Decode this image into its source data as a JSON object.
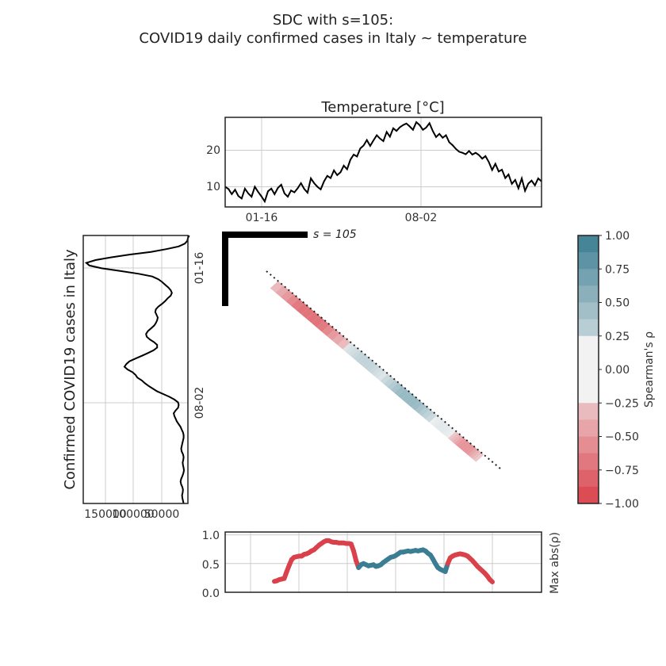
{
  "title_line1": "SDC with s=105:",
  "title_line2": "COVID19 daily confirmed cases in Italy ~ temperature",
  "scale_label": "s = 105",
  "colors": {
    "negative": "#d9414b",
    "positive": "#3b7d92",
    "diagonal": "#222222",
    "line": "#000000"
  },
  "chart_data": [
    {
      "type": "line",
      "title": "Temperature [°C]",
      "xticks": [
        "01-16",
        "08-02"
      ],
      "yticks": [
        10,
        20
      ],
      "ylim": [
        4.5,
        29
      ],
      "grid": true,
      "series": [
        {
          "values": [
            10,
            9.4,
            8,
            9.2,
            7.5,
            6.8,
            9.5,
            8.2,
            7.3,
            10,
            8.6,
            7.4,
            6,
            8.8,
            9.5,
            8,
            9.7,
            10.6,
            8.2,
            7.3,
            9,
            8.5,
            9.6,
            11,
            9.4,
            8.4,
            12.3,
            11,
            10,
            9.3,
            11.5,
            13,
            12.4,
            14.5,
            13.2,
            14,
            15.8,
            14.8,
            17.4,
            18.8,
            18.3,
            20.5,
            21.3,
            22.8,
            21.2,
            22.7,
            24.1,
            23.2,
            22.5,
            25,
            23.7,
            26,
            25.3,
            26.3,
            26.9,
            27.3,
            26.5,
            25.6,
            27.7,
            26.9,
            25.6,
            26.2,
            27.4,
            25.3,
            23.6,
            24.5,
            23.4,
            24.1,
            22.2,
            21.4,
            20.4,
            19.6,
            19.3,
            18.9,
            19.8,
            18.8,
            19.3,
            18.7,
            17.7,
            18.4,
            16.8,
            14.6,
            16.3,
            14.2,
            14.7,
            12.4,
            13.4,
            10.8,
            11.9,
            9.6,
            12.3,
            8.9,
            10.9,
            11.7,
            10.4,
            12.3,
            11.5
          ]
        }
      ]
    },
    {
      "type": "line",
      "ylabel": "Confirmed COVID19 cases in Italy",
      "yticks": [
        "01-16",
        "08-02"
      ],
      "xticks": [
        "150000",
        "100000",
        "50000"
      ],
      "xlim": [
        180000,
        10000
      ],
      "orientation": "vertical",
      "grid": true,
      "series": [
        {
          "values": [
            8000,
            10000,
            11000,
            15000,
            25000,
            45000,
            70000,
            105000,
            135000,
            160000,
            175000,
            170000,
            150000,
            120000,
            90000,
            68000,
            58000,
            52000,
            47000,
            42000,
            38000,
            36000,
            38000,
            43000,
            47000,
            52000,
            58000,
            62000,
            63000,
            61000,
            59000,
            60000,
            62000,
            65000,
            70000,
            75000,
            78000,
            77000,
            72000,
            65000,
            60000,
            60000,
            66000,
            75000,
            85000,
            95000,
            105000,
            110000,
            113000,
            108000,
            100000,
            95000,
            92000,
            85000,
            80000,
            74000,
            67000,
            60000,
            50000,
            40000,
            32000,
            26000,
            25000,
            26000,
            30000,
            33000,
            32000,
            30000,
            28000,
            25000,
            22000,
            20000,
            18000,
            17000,
            17000,
            18000,
            19000,
            20000,
            21000,
            20000,
            18000,
            17000,
            17500,
            18500,
            18000,
            17000,
            16500,
            17500,
            19000,
            21000,
            22000,
            21000,
            19000,
            18000,
            18500,
            19500,
            19000,
            18000,
            17000
          ]
        }
      ]
    },
    {
      "type": "heatmap",
      "name": "SDC diagonal map",
      "segments": [
        {
          "from": 0.05,
          "to": 0.36,
          "rho": -0.8
        },
        {
          "from": 0.36,
          "to": 0.52,
          "rho": 0.3
        },
        {
          "from": 0.52,
          "to": 0.73,
          "rho": 0.55
        },
        {
          "from": 0.73,
          "to": 0.81,
          "rho": 0.1
        },
        {
          "from": 0.81,
          "to": 0.93,
          "rho": -0.6
        }
      ]
    },
    {
      "type": "line",
      "ylabel": "Max abs(ρ)",
      "yticks": [
        0.0,
        0.5,
        1.0
      ],
      "ylim": [
        0,
        1.05
      ],
      "grid": true,
      "series": [
        {
          "values": [
            0.19,
            0.2,
            0.22,
            0.23,
            0.24,
            0.36,
            0.47,
            0.57,
            0.61,
            0.62,
            0.63,
            0.63,
            0.66,
            0.67,
            0.69,
            0.72,
            0.74,
            0.78,
            0.82,
            0.85,
            0.88,
            0.9,
            0.9,
            0.88,
            0.87,
            0.87,
            0.86,
            0.86,
            0.86,
            0.85,
            0.85,
            0.84,
            0.72,
            0.55,
            0.43,
            0.48,
            0.5,
            0.48,
            0.46,
            0.47,
            0.48,
            0.45,
            0.46,
            0.48,
            0.52,
            0.55,
            0.58,
            0.61,
            0.62,
            0.64,
            0.67,
            0.7,
            0.7,
            0.71,
            0.72,
            0.71,
            0.72,
            0.73,
            0.72,
            0.73,
            0.74,
            0.72,
            0.68,
            0.65,
            0.58,
            0.5,
            0.43,
            0.4,
            0.38,
            0.36,
            0.5,
            0.6,
            0.63,
            0.65,
            0.66,
            0.67,
            0.66,
            0.65,
            0.63,
            0.59,
            0.55,
            0.5,
            0.45,
            0.41,
            0.37,
            0.33,
            0.28,
            0.22,
            0.18
          ],
          "sign": [
            -1,
            -1,
            -1,
            -1,
            -1,
            -1,
            -1,
            -1,
            -1,
            -1,
            -1,
            -1,
            -1,
            -1,
            -1,
            -1,
            -1,
            -1,
            -1,
            -1,
            -1,
            -1,
            -1,
            -1,
            -1,
            -1,
            -1,
            -1,
            -1,
            -1,
            -1,
            -1,
            -1,
            -1,
            1,
            1,
            1,
            1,
            1,
            1,
            1,
            1,
            1,
            1,
            1,
            1,
            1,
            1,
            1,
            1,
            1,
            1,
            1,
            1,
            1,
            1,
            1,
            1,
            1,
            1,
            1,
            1,
            1,
            1,
            1,
            1,
            1,
            1,
            1,
            1,
            -1,
            -1,
            -1,
            -1,
            -1,
            -1,
            -1,
            -1,
            -1,
            -1,
            -1,
            -1,
            -1,
            -1,
            -1,
            -1,
            -1,
            -1,
            -1
          ]
        }
      ]
    },
    {
      "type": "colorbar",
      "label": "Spearman's ρ",
      "ticks": [
        "1.00",
        "0.75",
        "0.50",
        "0.25",
        "0.00",
        "−0.25",
        "−0.50",
        "−0.75",
        "−1.00"
      ],
      "range": [
        -1,
        1
      ]
    }
  ]
}
